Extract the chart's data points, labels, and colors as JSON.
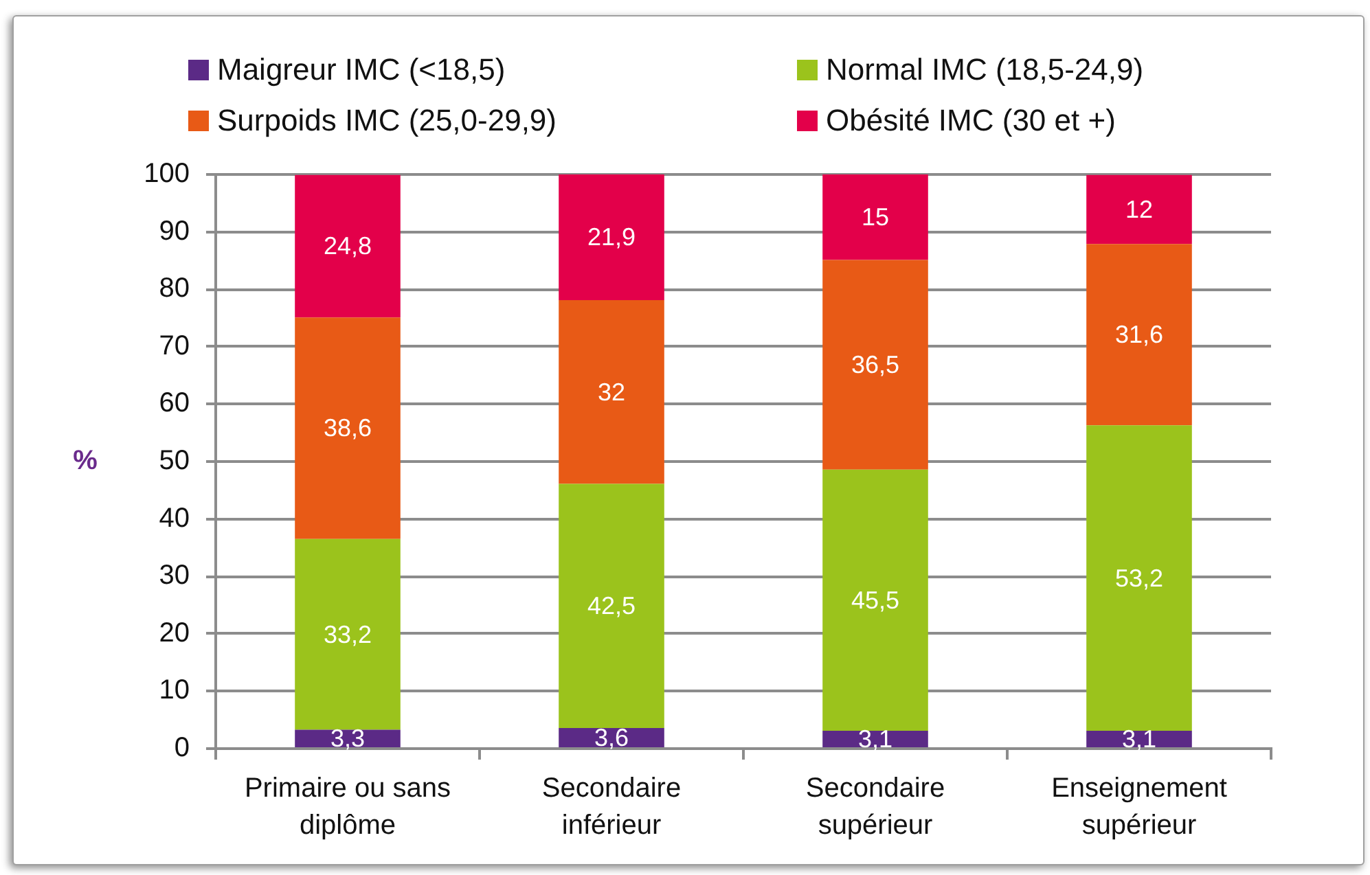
{
  "chart_data": {
    "type": "bar",
    "stacked": true,
    "categories": [
      "Primaire ou sans diplôme",
      "Secondaire inférieur",
      "Secondaire supérieur",
      "Enseignement supérieur"
    ],
    "ylabel": "%",
    "series": [
      {
        "name": "Maigreur IMC (<18,5)",
        "color": "#5b2a86",
        "values": [
          3.3,
          3.6,
          3.1,
          3.1
        ],
        "value_labels": [
          "3,3",
          "3,6",
          "3,1",
          "3,1"
        ]
      },
      {
        "name": "Normal IMC (18,5-24,9)",
        "color": "#9bc31c",
        "values": [
          33.2,
          42.5,
          45.5,
          53.2
        ],
        "value_labels": [
          "33,2",
          "42,5",
          "45,5",
          "53,2"
        ]
      },
      {
        "name": "Surpoids IMC (25,0-29,9)",
        "color": "#e85a16",
        "values": [
          38.6,
          32,
          36.5,
          31.6
        ],
        "value_labels": [
          "38,6",
          "32",
          "36,5",
          "31,6"
        ]
      },
      {
        "name": "Obésité IMC (30 et +)",
        "color": "#e3004a",
        "values": [
          24.8,
          21.9,
          15,
          12
        ],
        "value_labels": [
          "24,8",
          "21,9",
          "15",
          "12"
        ]
      }
    ],
    "ylim": [
      0,
      100
    ],
    "yticks": [
      0,
      10,
      20,
      30,
      40,
      50,
      60,
      70,
      80,
      90,
      100
    ],
    "grid": "y",
    "legend": "top"
  }
}
